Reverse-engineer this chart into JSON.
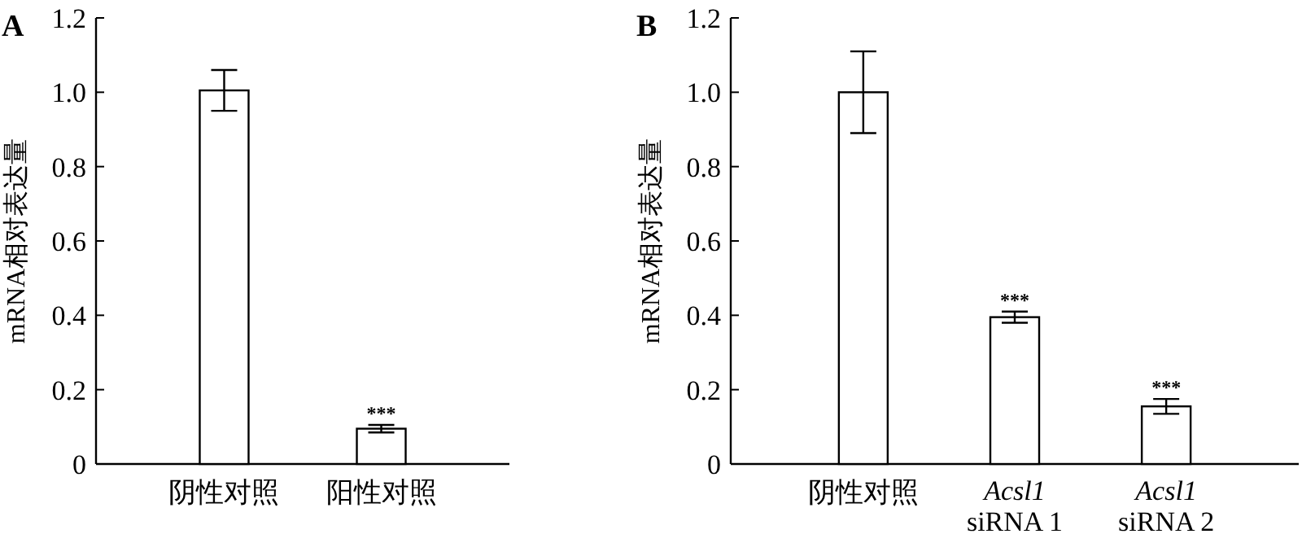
{
  "chart_data": [
    {
      "type": "bar",
      "title": "A",
      "ylabel": "mRNA相对表达量",
      "categories": [
        "阴性对照",
        "阳性对照"
      ],
      "values": [
        1.005,
        0.095
      ],
      "errors": [
        0.055,
        0.01
      ],
      "color": "#ffffff",
      "ylim": [
        0,
        1.2
      ],
      "yticks": [
        0,
        0.2,
        0.4,
        0.6,
        0.8,
        {
          "value": 1.0,
          "label": "1.0"
        },
        1.2
      ],
      "grid": false,
      "annotations": [
        {
          "text": "***",
          "x": "阳性对照",
          "y": 0.105
        }
      ]
    },
    {
      "type": "bar",
      "title": "B",
      "ylabel": "mRNA相对表达量",
      "categories": [
        "阴性对照",
        "Acsl1 siRNA 1",
        "Acsl1 siRNA 2"
      ],
      "values": [
        1.0,
        0.395,
        0.155
      ],
      "errors": [
        0.11,
        0.015,
        0.02
      ],
      "color": "#ffffff",
      "ylim": [
        0,
        1.2
      ],
      "yticks": [
        0,
        0.2,
        0.4,
        0.6,
        0.8,
        {
          "value": 1.0,
          "label": "1.0"
        },
        1.2
      ],
      "grid": false,
      "annotations": [
        {
          "text": "***",
          "x": "Acsl1 siRNA 1",
          "y": 0.41
        },
        {
          "text": "***",
          "x": "Acsl1 siRNA 2",
          "y": 0.175
        }
      ]
    }
  ]
}
